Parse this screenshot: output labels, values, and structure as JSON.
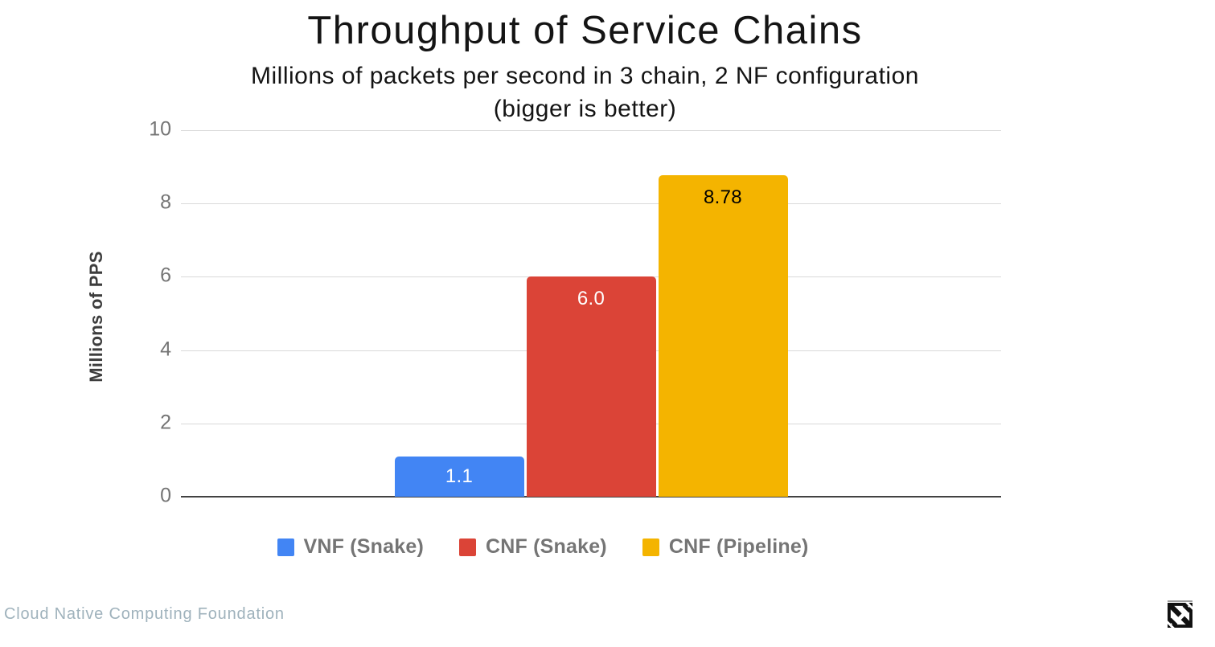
{
  "chart_data": {
    "type": "bar",
    "title": "Throughput of Service Chains",
    "subtitle_line1": "Millions of packets per second in 3 chain, 2 NF configuration",
    "subtitle_line2": "(bigger is better)",
    "ylabel": "Millions of PPS",
    "ylim": [
      0,
      10
    ],
    "yticks": [
      0,
      2,
      4,
      6,
      8,
      10
    ],
    "grid": true,
    "legend_position": "bottom",
    "series": [
      {
        "name": "VNF (Snake)",
        "value": 1.1,
        "label": "1.1",
        "color": "#4285f4",
        "label_color": "#ffffff"
      },
      {
        "name": "CNF (Snake)",
        "value": 6.0,
        "label": "6.0",
        "color": "#db4437",
        "label_color": "#ffffff"
      },
      {
        "name": "CNF (Pipeline)",
        "value": 8.78,
        "label": "8.78",
        "color": "#f4b400",
        "label_color": "#000000"
      }
    ],
    "colors": {
      "gridline": "#d9d9d9",
      "axis_baseline": "#424242",
      "tick_label": "#757575",
      "legend_label": "#757575",
      "title": "#141414"
    }
  },
  "footer": {
    "attribution": "Cloud Native Computing Foundation",
    "attribution_color": "#9fb2bc"
  },
  "icons": {
    "bottom_right": "cncf-logo"
  }
}
